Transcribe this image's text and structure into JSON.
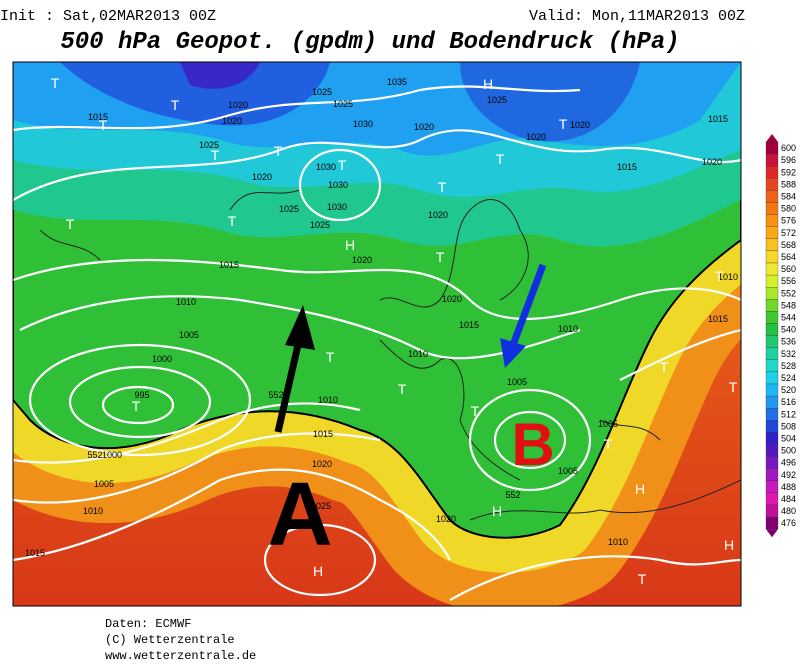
{
  "header": {
    "init": "Init : Sat,02MAR2013 00Z",
    "valid": "Valid: Mon,11MAR2013 00Z",
    "title": "500 hPa Geopot. (gpdm) und Bodendruck (hPa)"
  },
  "map": {
    "isobar_labels": [
      "1015",
      "1020",
      "1020",
      "1025",
      "1025",
      "1025",
      "1035",
      "1030",
      "1025",
      "1020",
      "1020",
      "1020",
      "1015",
      "1020",
      "1015",
      "1020",
      "1030",
      "1030",
      "1030",
      "1025",
      "1025",
      "1020",
      "1020",
      "1015",
      "1020",
      "1015",
      "1010",
      "1005",
      "1000",
      "995",
      "1010",
      "1010",
      "1010",
      "1015",
      "1020",
      "1025",
      "1005",
      "1000",
      "1005",
      "1010",
      "1015",
      "1020",
      "1005",
      "1010",
      "1005",
      "1010",
      "1015",
      "552",
      "552",
      "552"
    ],
    "centers": [
      "T",
      "T",
      "T",
      "T",
      "T",
      "T",
      "T",
      "T",
      "T",
      "T",
      "H",
      "T",
      "T",
      "T",
      "T",
      "T",
      "T",
      "H",
      "H",
      "H",
      "T",
      "T",
      "T",
      "H",
      "H",
      "T",
      "T"
    ],
    "annotations": [
      "A",
      "B"
    ]
  },
  "colorbar": {
    "ticks": [
      600,
      596,
      592,
      588,
      584,
      580,
      576,
      572,
      568,
      564,
      560,
      556,
      552,
      548,
      544,
      540,
      536,
      532,
      528,
      524,
      520,
      516,
      512,
      508,
      504,
      500,
      496,
      492,
      488,
      484,
      480,
      476
    ],
    "colors": [
      "#a0003c",
      "#c8143c",
      "#e02828",
      "#e84820",
      "#f06018",
      "#f47810",
      "#f89010",
      "#f8a818",
      "#f8c020",
      "#f8d828",
      "#f0e830",
      "#d8f028",
      "#a8e828",
      "#70d828",
      "#40c830",
      "#20c040",
      "#20c870",
      "#20d0a0",
      "#20d8c8",
      "#20d0e8",
      "#20b8f0",
      "#2098f0",
      "#2070e8",
      "#2048d8",
      "#3020c8",
      "#5018c0",
      "#7818c0",
      "#a018c0",
      "#c818c0",
      "#e018b0",
      "#c01098",
      "#800070"
    ]
  },
  "credits": [
    "Daten: ECMWF",
    "(C) Wetterzentrale",
    "www.wetterzentrale.de"
  ]
}
